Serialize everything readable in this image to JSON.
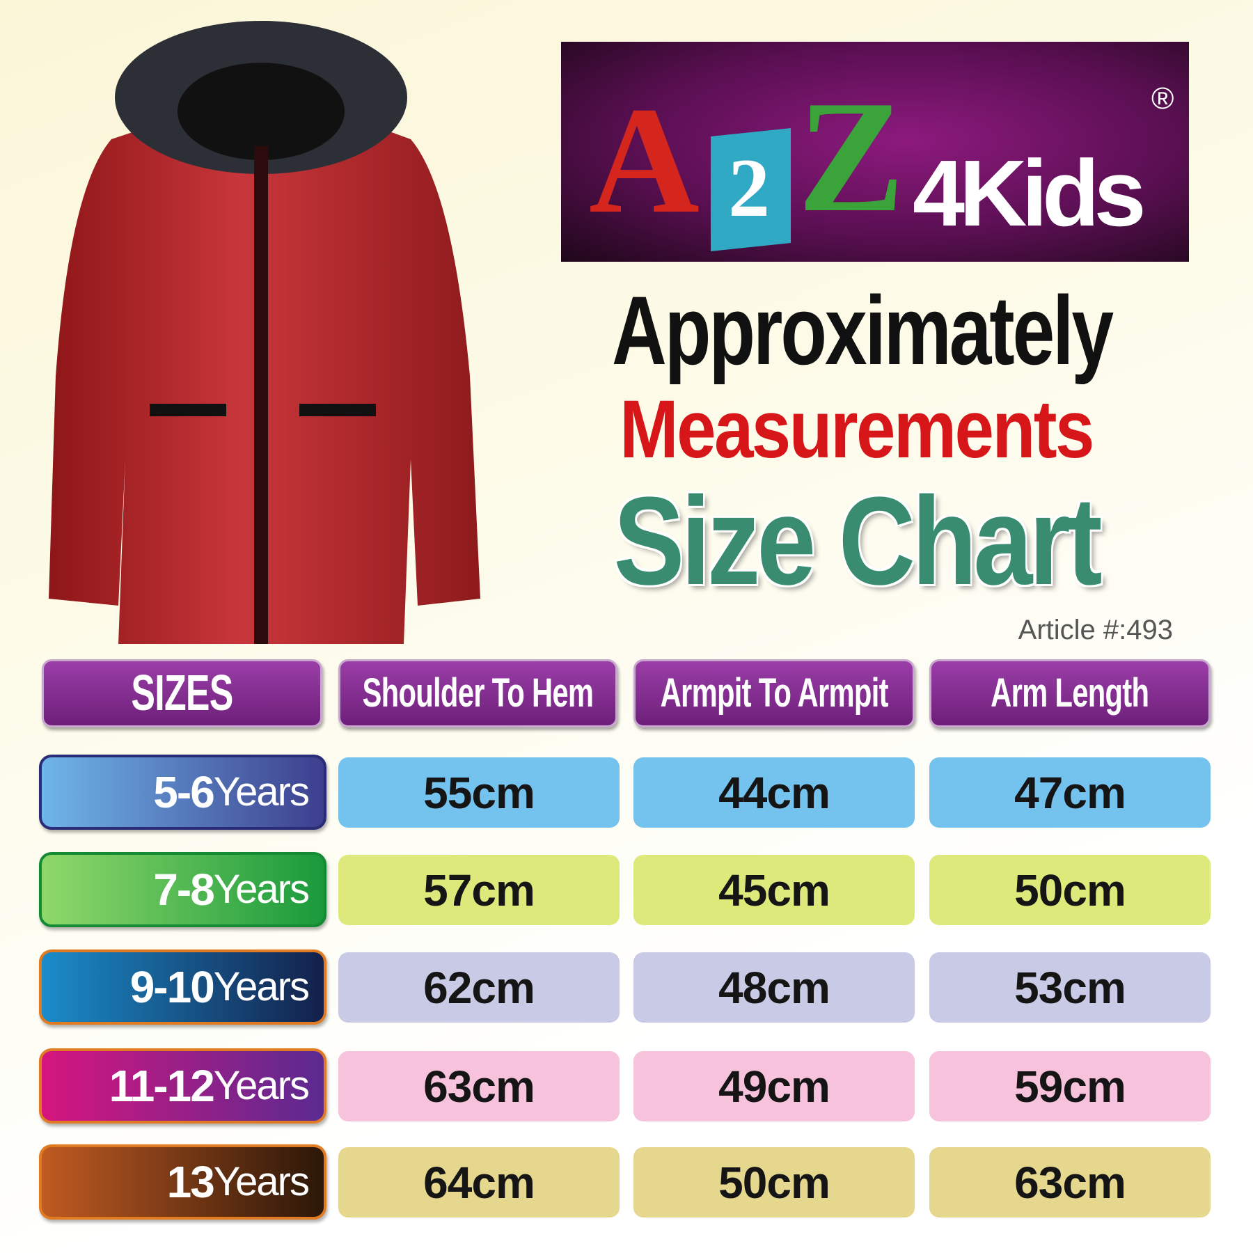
{
  "brand": {
    "logo_text": "A2Z4Kids",
    "registered": "®"
  },
  "title": {
    "line1": "Approximately",
    "line2": "Measurements",
    "line3": "Size Chart"
  },
  "article": "Article #:493",
  "table": {
    "headers": [
      "SIZES",
      "Shoulder To Hem",
      "Armpit To Armpit",
      "Arm Length"
    ],
    "rows": [
      {
        "size_num": "5-6",
        "size_unit": "Years",
        "values": [
          "55cm",
          "44cm",
          "47cm"
        ],
        "color": "#74c2ee"
      },
      {
        "size_num": "7-8",
        "size_unit": "Years",
        "values": [
          "57cm",
          "45cm",
          "50cm"
        ],
        "color": "#dde97a"
      },
      {
        "size_num": "9-10",
        "size_unit": "Years",
        "values": [
          "62cm",
          "48cm",
          "53cm"
        ],
        "color": "#c9cbe6"
      },
      {
        "size_num": "11-12",
        "size_unit": "Years",
        "values": [
          "63cm",
          "49cm",
          "59cm"
        ],
        "color": "#f6c2dc"
      },
      {
        "size_num": "13",
        "size_unit": "Years",
        "values": [
          "64cm",
          "50cm",
          "63cm"
        ],
        "color": "#e6d78e"
      }
    ]
  },
  "product_image": "red-padded-jacket-with-fur-hood"
}
